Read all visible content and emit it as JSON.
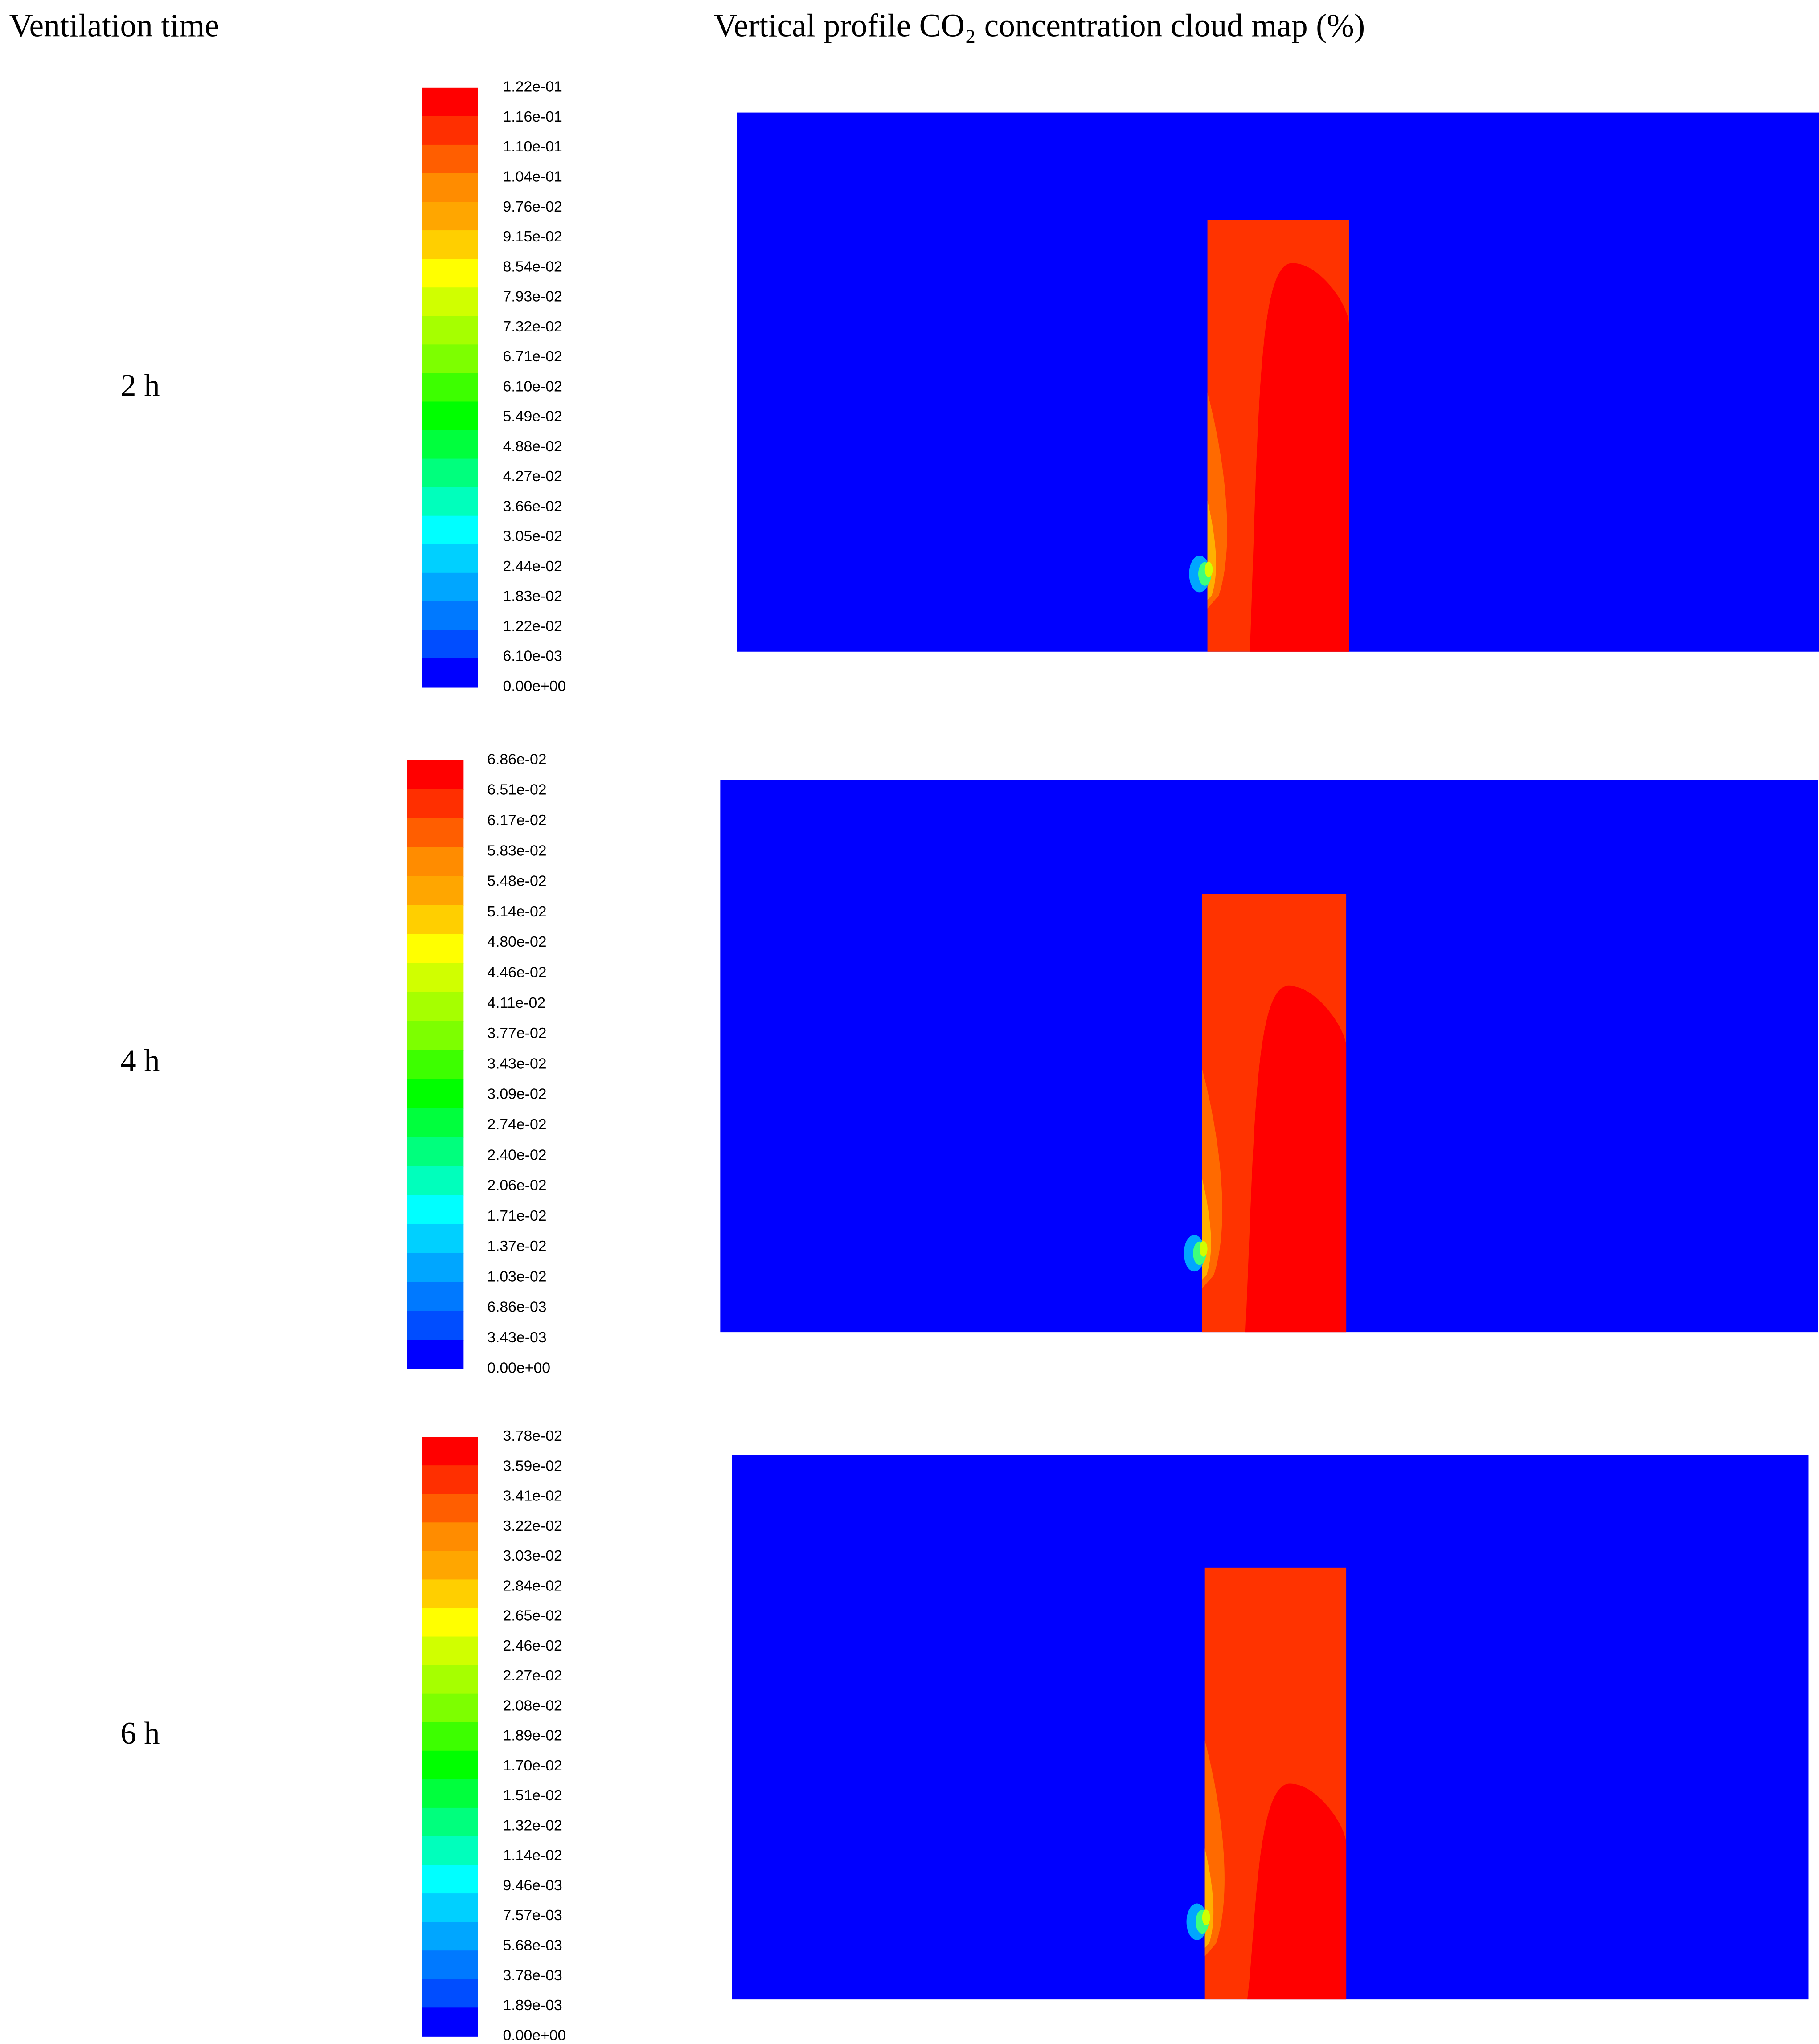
{
  "header": {
    "left": "Ventilation time",
    "right": "Vertical profile CO₂ concentration cloud map (%)"
  },
  "rows": [
    {
      "time": "2 h",
      "colorbar": [
        "1.22e-01",
        "1.16e-01",
        "1.10e-01",
        "1.04e-01",
        "9.76e-02",
        "9.15e-02",
        "8.54e-02",
        "7.93e-02",
        "7.32e-02",
        "6.71e-02",
        "6.10e-02",
        "5.49e-02",
        "4.88e-02",
        "4.27e-02",
        "3.66e-02",
        "3.05e-02",
        "2.44e-02",
        "1.83e-02",
        "1.22e-02",
        "6.10e-03",
        "0.00e+00"
      ]
    },
    {
      "time": "4 h",
      "colorbar": [
        "6.86e-02",
        "6.51e-02",
        "6.17e-02",
        "5.83e-02",
        "5.48e-02",
        "5.14e-02",
        "4.80e-02",
        "4.46e-02",
        "4.11e-02",
        "3.77e-02",
        "3.43e-02",
        "3.09e-02",
        "2.74e-02",
        "2.40e-02",
        "2.06e-02",
        "1.71e-02",
        "1.37e-02",
        "1.03e-02",
        "6.86e-03",
        "3.43e-03",
        "0.00e+00"
      ]
    },
    {
      "time": "6 h",
      "colorbar": [
        "3.78e-02",
        "3.59e-02",
        "3.41e-02",
        "3.22e-02",
        "3.03e-02",
        "2.84e-02",
        "2.65e-02",
        "2.46e-02",
        "2.27e-02",
        "2.08e-02",
        "1.89e-02",
        "1.70e-02",
        "1.51e-02",
        "1.32e-02",
        "1.14e-02",
        "9.46e-03",
        "7.57e-03",
        "5.68e-03",
        "3.78e-03",
        "1.89e-03",
        "0.00e+00"
      ]
    }
  ]
}
